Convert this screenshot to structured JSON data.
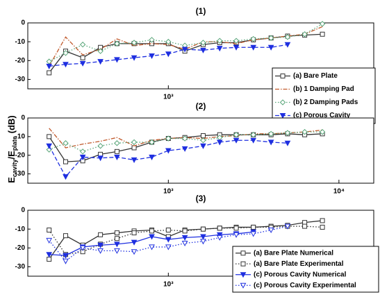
{
  "chart_data": [
    {
      "type": "line",
      "title": "(1)",
      "xscale": "log",
      "xlim": [
        150,
        16000
      ],
      "ylim": [
        -35,
        0
      ],
      "yticks": [
        0,
        -10,
        -20,
        -30
      ],
      "xticks": [
        {
          "value": 1000,
          "label": "10³"
        }
      ],
      "y_label_parts": [
        "E",
        "cavity",
        "/E",
        "plate",
        "(dB)"
      ],
      "legend": "lower right",
      "x": [
        200,
        250,
        315,
        400,
        500,
        630,
        800,
        1000,
        1250,
        1600,
        2000,
        2500,
        3150,
        4000,
        5000,
        6300,
        8000
      ],
      "series": [
        {
          "name": "(a) Bare Plate",
          "color": "#333333",
          "marker": "square",
          "dash": "solid",
          "marker_fill": "none",
          "values": [
            -26.5,
            -15,
            -18.5,
            -13,
            -11,
            -11,
            -11,
            -11,
            -15,
            -11.5,
            -10.5,
            -10.5,
            -9,
            -8,
            -7,
            -6.5,
            -6
          ]
        },
        {
          "name": "(b) 1 Damping Pad",
          "color": "#c0582a",
          "marker": "none",
          "dash": "dashdot",
          "marker_fill": "none",
          "values": [
            -23,
            -7.5,
            -17,
            -14,
            -8.5,
            -12,
            -11,
            -11.5,
            -14,
            -10,
            -10,
            -11,
            -9,
            -8,
            -7,
            -6,
            -2
          ]
        },
        {
          "name": "(b) 2 Damping Pads",
          "color": "#5aa67a",
          "marker": "diamond",
          "dash": "dotted",
          "marker_fill": "none",
          "values": [
            -20.5,
            -16,
            -11.5,
            -15,
            -11,
            -10.5,
            -9,
            -10,
            -12,
            -10.5,
            -9.5,
            -9.5,
            -8.5,
            -8,
            -7.5,
            -6,
            -0.5
          ]
        },
        {
          "name": "(c) Porous Cavity",
          "color": "#1e2fe0",
          "marker": "triangle-down",
          "dash": "dashed",
          "marker_fill": "color",
          "values": [
            -23,
            -22,
            -21.5,
            -20.5,
            -19.5,
            -18.5,
            -17.5,
            -16.5,
            -14,
            -14.5,
            -13.5,
            -13,
            -13,
            -13,
            -11.5,
            null,
            null
          ]
        }
      ]
    },
    {
      "type": "line",
      "title": "(2)",
      "xscale": "log",
      "xlim": [
        150,
        16000
      ],
      "ylim": [
        -35,
        0
      ],
      "yticks": [
        0,
        -10,
        -20,
        -30
      ],
      "xticks": [
        {
          "value": 1000,
          "label": "10³"
        },
        {
          "value": 10000,
          "label": "10⁴"
        }
      ],
      "x": [
        200,
        250,
        315,
        400,
        500,
        630,
        800,
        1000,
        1250,
        1600,
        2000,
        2500,
        3150,
        4000,
        5000,
        6300,
        8000
      ],
      "series": [
        {
          "name": "(a) Bare Plate",
          "color": "#333333",
          "marker": "square",
          "dash": "solid",
          "marker_fill": "none",
          "values": [
            -10,
            -23.5,
            -23,
            -19.5,
            -18,
            -16,
            -13,
            -11,
            -10.5,
            -9.5,
            -9,
            -9,
            -9,
            -9,
            -8.5,
            -9,
            -8.5
          ]
        },
        {
          "name": "(b) 1 Damping Pad",
          "color": "#c0582a",
          "marker": "none",
          "dash": "dashdot",
          "marker_fill": "none",
          "values": [
            -5.5,
            -16,
            -14,
            -12.5,
            -10.5,
            -15,
            -12,
            -11,
            -10.5,
            -11,
            -10,
            -9.5,
            -8.5,
            -8.5,
            -8,
            -7.5,
            -6.5
          ]
        },
        {
          "name": "(b) 2 Damping Pads",
          "color": "#5aa67a",
          "marker": "diamond",
          "dash": "dotted",
          "marker_fill": "none",
          "values": [
            -17,
            -13.5,
            -18,
            -15,
            -13.5,
            -13,
            -13,
            -11,
            -11,
            -12,
            -10.5,
            -9,
            -9,
            -8.5,
            -8,
            -7.5,
            -7.5
          ]
        },
        {
          "name": "(c) Porous Cavity",
          "color": "#1e2fe0",
          "marker": "triangle-down",
          "dash": "dashed",
          "marker_fill": "color",
          "values": [
            -15,
            -31.5,
            -21,
            -21.5,
            -21,
            -22.5,
            -21,
            -17.5,
            -16.5,
            -15,
            -13,
            -12,
            -12,
            -13,
            -13.5,
            null,
            null
          ]
        }
      ]
    },
    {
      "type": "line",
      "title": "(3)",
      "xscale": "log",
      "xlim": [
        150,
        16000
      ],
      "ylim": [
        -35,
        0
      ],
      "yticks": [
        0,
        -10,
        -20,
        -30
      ],
      "xticks": [
        {
          "value": 1000,
          "label": "10³"
        }
      ],
      "legend": "lower right",
      "x": [
        200,
        250,
        315,
        400,
        500,
        630,
        800,
        1000,
        1250,
        1600,
        2000,
        2500,
        3150,
        4000,
        5000,
        6300,
        8000
      ],
      "series": [
        {
          "name": "(a) Bare Plate Numerical",
          "color": "#333333",
          "marker": "square",
          "dash": "solid",
          "marker_fill": "none",
          "values": [
            -26,
            -13.5,
            -18.5,
            -13,
            -12,
            -11,
            -10.5,
            -14,
            -10.5,
            -10,
            -9.5,
            -9,
            -9,
            -8.5,
            -8,
            -6.5,
            -5.5
          ]
        },
        {
          "name": "(a) Bare Plate Experimental",
          "color": "#333333",
          "marker": "square",
          "dash": "dotted",
          "marker_fill": "none",
          "values": [
            -10.5,
            -23.5,
            -22,
            -18,
            -15,
            -12,
            -11,
            -10.5,
            -11,
            -10,
            -9.5,
            -9.5,
            -9,
            -9,
            -8.5,
            -8.5,
            -9
          ]
        },
        {
          "name": "(c) Porous Cavity Numerical",
          "color": "#1e2fe0",
          "marker": "triangle-down",
          "dash": "solid",
          "marker_fill": "color",
          "values": [
            -23.5,
            -24,
            -19.5,
            -18.5,
            -18,
            -17,
            -14,
            -15.5,
            -14.5,
            -14,
            -13,
            -12.5,
            -11.5,
            null,
            null,
            null,
            null
          ]
        },
        {
          "name": "(c) Porous Cavity Experimental",
          "color": "#1e2fe0",
          "marker": "triangle-down",
          "dash": "dotted",
          "marker_fill": "none",
          "values": [
            -16,
            -27,
            -20,
            -21.5,
            -21.5,
            -22,
            -19.5,
            -19.5,
            -17.5,
            -16.5,
            -14.5,
            -13,
            -12.5,
            -10.5,
            -8.5,
            null,
            null
          ]
        }
      ]
    }
  ]
}
